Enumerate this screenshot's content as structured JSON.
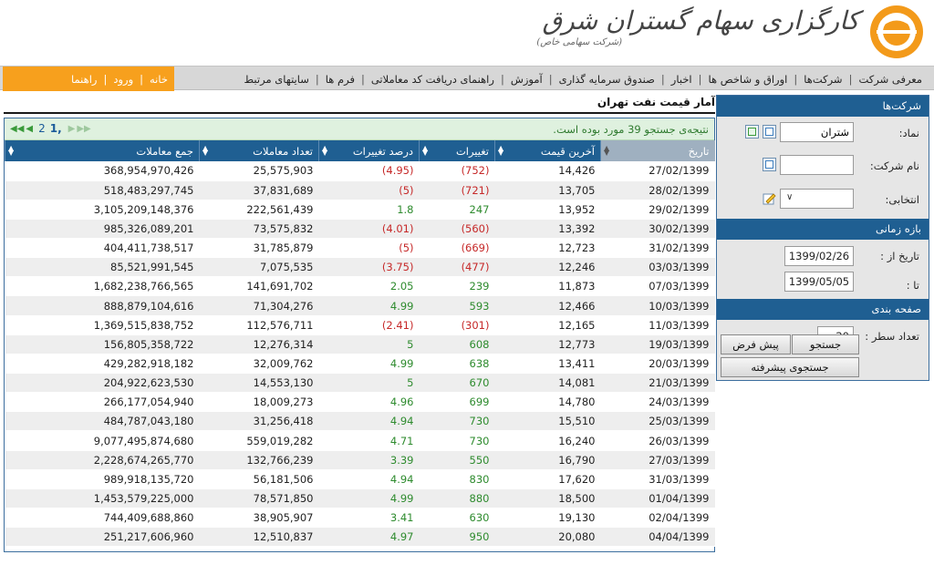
{
  "brand": {
    "title": "کارگزاری سهام گستران شرق",
    "subtitle": "(شرکت سهامی خاص)"
  },
  "nav": {
    "items": [
      "معرفی شرکت",
      "شرکت‌ها",
      "اوراق و شاخص ها",
      "اخبار",
      "صندوق سرمایه گذاری",
      "آموزش",
      "راهنمای دریافت کد معاملاتی",
      "فرم ها",
      "سایتهای مرتبط"
    ],
    "orange": [
      "خانه",
      "ورود",
      "راهنما"
    ]
  },
  "page_title": "آمار قیمت نفت تهران",
  "results_text": "نتیجه‌ی جستجو 39 مورد بوده است.",
  "pager": {
    "current": "1",
    "next": "2"
  },
  "table": {
    "columns": [
      "تاریخ",
      "آخرین قیمت",
      "تغییرات",
      "درصد تغییرات",
      "تعداد معاملات",
      "جمع معاملات"
    ],
    "rows": [
      [
        "27/02/1399",
        "14,426",
        "(752)",
        "(4.95)",
        "25,575,903",
        "368,954,970,426"
      ],
      [
        "28/02/1399",
        "13,705",
        "(721)",
        "(5)",
        "37,831,689",
        "518,483,297,745"
      ],
      [
        "29/02/1399",
        "13,952",
        "247",
        "1.8",
        "222,561,439",
        "3,105,209,148,376"
      ],
      [
        "30/02/1399",
        "13,392",
        "(560)",
        "(4.01)",
        "73,575,832",
        "985,326,089,201"
      ],
      [
        "31/02/1399",
        "12,723",
        "(669)",
        "(5)",
        "31,785,879",
        "404,411,738,517"
      ],
      [
        "03/03/1399",
        "12,246",
        "(477)",
        "(3.75)",
        "7,075,535",
        "85,521,991,545"
      ],
      [
        "07/03/1399",
        "11,873",
        "239",
        "2.05",
        "141,691,702",
        "1,682,238,766,565"
      ],
      [
        "10/03/1399",
        "12,466",
        "593",
        "4.99",
        "71,304,276",
        "888,879,104,616"
      ],
      [
        "11/03/1399",
        "12,165",
        "(301)",
        "(2.41)",
        "112,576,711",
        "1,369,515,838,752"
      ],
      [
        "19/03/1399",
        "12,773",
        "608",
        "5",
        "12,276,314",
        "156,805,358,722"
      ],
      [
        "20/03/1399",
        "13,411",
        "638",
        "4.99",
        "32,009,762",
        "429,282,918,182"
      ],
      [
        "21/03/1399",
        "14,081",
        "670",
        "5",
        "14,553,130",
        "204,922,623,530"
      ],
      [
        "24/03/1399",
        "14,780",
        "699",
        "4.96",
        "18,009,273",
        "266,177,054,940"
      ],
      [
        "25/03/1399",
        "15,510",
        "730",
        "4.94",
        "31,256,418",
        "484,787,043,180"
      ],
      [
        "26/03/1399",
        "16,240",
        "730",
        "4.71",
        "559,019,282",
        "9,077,495,874,680"
      ],
      [
        "27/03/1399",
        "16,790",
        "550",
        "3.39",
        "132,766,239",
        "2,228,674,265,770"
      ],
      [
        "31/03/1399",
        "17,620",
        "830",
        "4.94",
        "56,181,506",
        "989,918,135,720"
      ],
      [
        "01/04/1399",
        "18,500",
        "880",
        "4.99",
        "78,571,850",
        "1,453,579,225,000"
      ],
      [
        "02/04/1399",
        "19,130",
        "630",
        "3.41",
        "38,905,907",
        "744,409,688,860"
      ],
      [
        "04/04/1399",
        "20,080",
        "950",
        "4.97",
        "12,510,837",
        "251,217,606,960"
      ]
    ]
  },
  "sidebar": {
    "companies_header": "شرکت‌ها",
    "symbol_label": "نماد:",
    "symbol_value": "شتران",
    "company_name_label": "نام شرکت:",
    "selected_label": "انتخابی:",
    "period_header": "بازه زمانی",
    "date_from_label": "تاریخ از :",
    "date_from": "1399/02/26",
    "date_to_label": "تا :",
    "date_to": "1399/05/05",
    "paging_header": "صفحه بندی",
    "rows_label": "تعداد سطر :",
    "rows_value": "20",
    "search_button": "جستجو",
    "default_button": "پیش فرض",
    "advanced_search_button": "جستجوی پیشرفته"
  },
  "colors": {
    "header_blue": "#1f5f92",
    "orange": "#f7a01d",
    "negative": "#c62828",
    "positive": "#2e8b2e"
  }
}
